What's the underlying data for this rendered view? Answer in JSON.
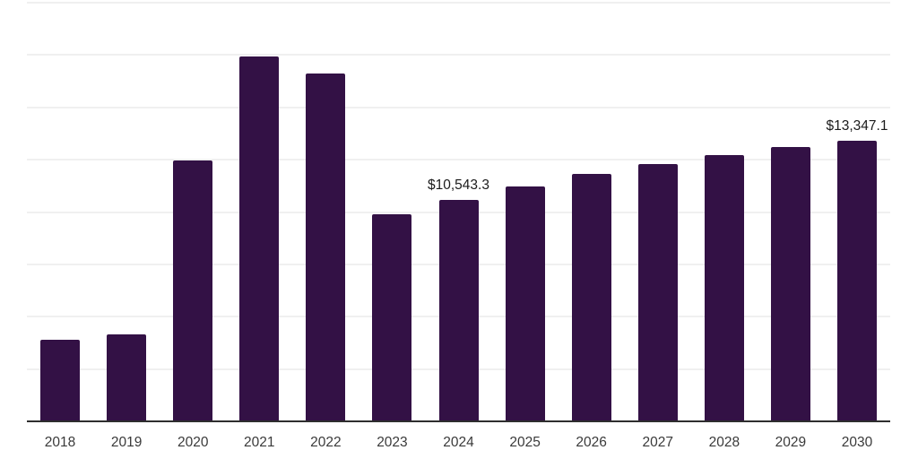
{
  "chart_data": {
    "type": "bar",
    "title": "",
    "xlabel": "",
    "ylabel": "",
    "categories": [
      "2018",
      "2019",
      "2020",
      "2021",
      "2022",
      "2023",
      "2024",
      "2025",
      "2026",
      "2027",
      "2028",
      "2029",
      "2030"
    ],
    "values": [
      3850,
      4100,
      12400,
      17400,
      16570,
      9850,
      10543.3,
      11180,
      11780,
      12250,
      12680,
      13060,
      13347.1
    ],
    "bar_labels": [
      "",
      "",
      "",
      "",
      "",
      "",
      "$10,543.3",
      "",
      "",
      "",
      "",
      "",
      "$13,347.1"
    ],
    "ylim": [
      0,
      20000
    ],
    "gridline_step": 2500,
    "grid": "horizontal",
    "y_tick_labels_visible": false,
    "legend_position": "none",
    "colors": {
      "bar": "#331145",
      "gridline": "#f0f0f0",
      "axis_line": "#2e2e2e",
      "tick_label": "#3a3a3a",
      "data_label": "#1b1b1b",
      "background": "#ffffff"
    }
  }
}
